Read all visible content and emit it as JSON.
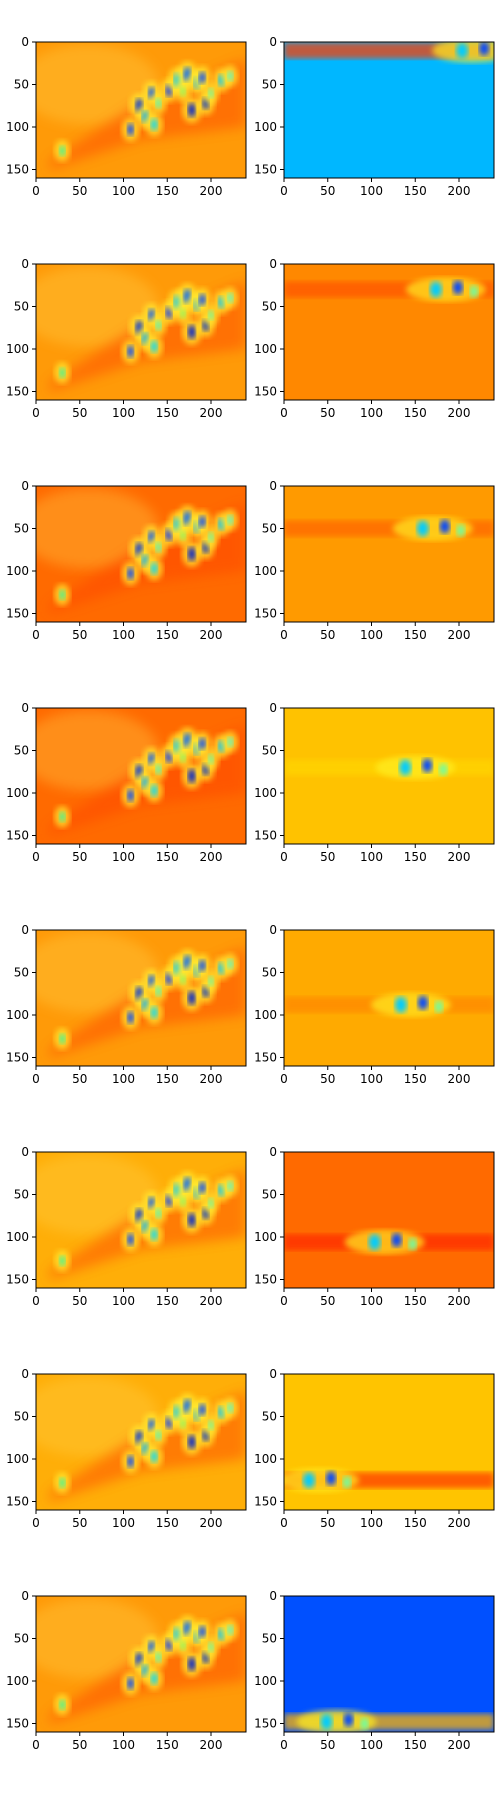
{
  "chart_data": {
    "type": "heatmap",
    "grid": false,
    "layout": "8 rows x 2 columns of heatmap panels",
    "colormap": "jet",
    "axes": {
      "xlim": [
        0,
        240
      ],
      "ylim": [
        160,
        0
      ],
      "xticks": [
        0,
        50,
        100,
        150,
        200
      ],
      "yticks": [
        0,
        50,
        100,
        150
      ]
    },
    "panels": [
      {
        "row": 1,
        "col": 1,
        "kind": "full",
        "bg": "#ff9a08"
      },
      {
        "row": 1,
        "col": 2,
        "kind": "band",
        "bg": "#00b7ff",
        "band_y": 10,
        "band_color": "#ff3a00",
        "hot_x": 215
      },
      {
        "row": 2,
        "col": 1,
        "kind": "full",
        "bg": "#ff9a08"
      },
      {
        "row": 2,
        "col": 2,
        "kind": "band",
        "bg": "#ff8800",
        "band_y": 30,
        "band_color": "#ff5500",
        "hot_x": 185
      },
      {
        "row": 3,
        "col": 1,
        "kind": "full",
        "bg": "#ff6a00"
      },
      {
        "row": 3,
        "col": 2,
        "kind": "band",
        "bg": "#ff9a00",
        "band_y": 50,
        "band_color": "#ff6600",
        "hot_x": 170
      },
      {
        "row": 4,
        "col": 1,
        "kind": "full",
        "bg": "#ff6a00"
      },
      {
        "row": 4,
        "col": 2,
        "kind": "band",
        "bg": "#ffc200",
        "band_y": 70,
        "band_color": "#ffd400",
        "hot_x": 150
      },
      {
        "row": 5,
        "col": 1,
        "kind": "full",
        "bg": "#ff9a08"
      },
      {
        "row": 5,
        "col": 2,
        "kind": "band",
        "bg": "#ffaa00",
        "band_y": 88,
        "band_color": "#ff8800",
        "hot_x": 145
      },
      {
        "row": 6,
        "col": 1,
        "kind": "full",
        "bg": "#ffae08"
      },
      {
        "row": 6,
        "col": 2,
        "kind": "band",
        "bg": "#ff6a00",
        "band_y": 106,
        "band_color": "#ff2a00",
        "hot_x": 115
      },
      {
        "row": 7,
        "col": 1,
        "kind": "full",
        "bg": "#ffae08"
      },
      {
        "row": 7,
        "col": 2,
        "kind": "band",
        "bg": "#ffc400",
        "band_y": 125,
        "band_color": "#ff3a00",
        "hot_x": 40
      },
      {
        "row": 8,
        "col": 1,
        "kind": "full",
        "bg": "#ff9a08"
      },
      {
        "row": 8,
        "col": 2,
        "kind": "band",
        "bg": "#0050ff",
        "band_y": 148,
        "band_color": "#ffb300",
        "hot_x": 60
      }
    ]
  }
}
